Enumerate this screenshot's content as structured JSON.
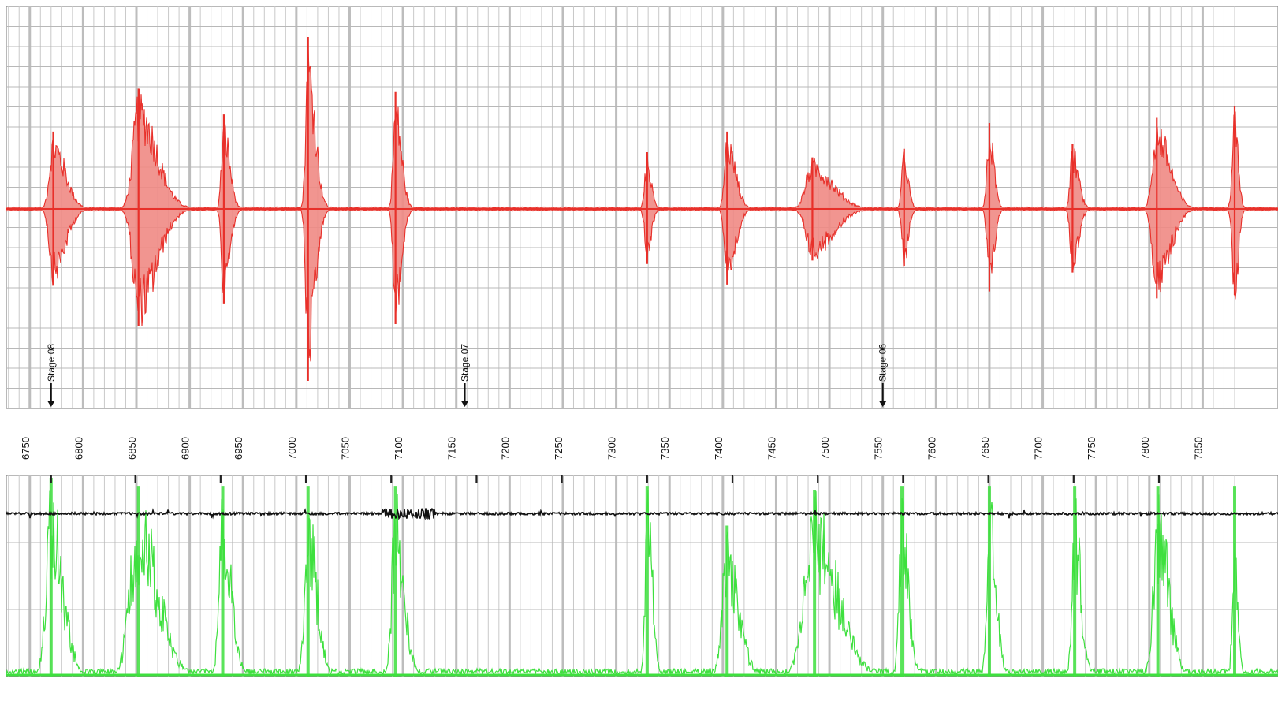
{
  "chart_data": [
    {
      "type": "line",
      "panel": "top",
      "title": "",
      "xlabel": "",
      "ylabel": "",
      "xlim": [
        6728,
        7880
      ],
      "grid": true,
      "x_ticks": [
        6750,
        6800,
        6850,
        6900,
        6950,
        7000,
        7050,
        7100,
        7150,
        7200,
        7250,
        7300,
        7350,
        7400,
        7450,
        7500,
        7550,
        7600,
        7650,
        7700,
        7750,
        7800,
        7850
      ],
      "series": [
        {
          "color": "#e8302a",
          "fill": "#f08a84",
          "style": "waveform",
          "baseline": 0,
          "amplitude_range": [
            -1,
            1
          ],
          "bursts": [
            {
              "x": 6772,
              "peak": 0.45,
              "trough": -0.44,
              "width": 20
            },
            {
              "x": 6852,
              "peak": 0.7,
              "trough": -0.68,
              "width": 30
            },
            {
              "x": 6932,
              "peak": 0.55,
              "trough": -0.55,
              "width": 10
            },
            {
              "x": 7011,
              "peak": 1.0,
              "trough": -1.0,
              "width": 12
            },
            {
              "x": 7093,
              "peak": 0.68,
              "trough": -0.67,
              "width": 10
            },
            {
              "x": 7329,
              "peak": 0.33,
              "trough": -0.32,
              "width": 7
            },
            {
              "x": 7404,
              "peak": 0.45,
              "trough": -0.44,
              "width": 14
            },
            {
              "x": 7484,
              "peak": 0.3,
              "trough": -0.3,
              "width": 34
            },
            {
              "x": 7570,
              "peak": 0.35,
              "trough": -0.33,
              "width": 7
            },
            {
              "x": 7650,
              "peak": 0.5,
              "trough": -0.48,
              "width": 8
            },
            {
              "x": 7728,
              "peak": 0.38,
              "trough": -0.37,
              "width": 10
            },
            {
              "x": 7807,
              "peak": 0.53,
              "trough": -0.52,
              "width": 22
            },
            {
              "x": 7880,
              "peak": 0.6,
              "trough": -0.5,
              "width": 6
            }
          ]
        }
      ],
      "annotations": [
        {
          "label": "Stage 08",
          "x": 6770
        },
        {
          "label": "Stage 07",
          "x": 7158
        },
        {
          "label": "Stage 06",
          "x": 7550
        }
      ]
    },
    {
      "type": "line",
      "panel": "bottom",
      "title": "",
      "xlabel": "",
      "ylabel": "",
      "xlim": [
        6728,
        7880
      ],
      "grid": true,
      "tick_marks_x": [
        6770,
        6849,
        6929,
        7009,
        7089,
        7169,
        7249,
        7329,
        7409,
        7489,
        7569,
        7649,
        7729,
        7809
      ],
      "series": [
        {
          "color": "#111111",
          "style": "noise-trace",
          "level": 0.82,
          "noisy_segment": [
            7080,
            7130
          ]
        },
        {
          "color": "#3ee03e",
          "style": "spikes",
          "level": 0,
          "peaks": [
            {
              "x": 6770,
              "value": 1.0,
              "width": 22
            },
            {
              "x": 6852,
              "value": 0.96,
              "width": 36
            },
            {
              "x": 6931,
              "value": 0.96,
              "width": 16
            },
            {
              "x": 7011,
              "value": 0.96,
              "width": 16
            },
            {
              "x": 7093,
              "value": 0.96,
              "width": 16
            },
            {
              "x": 7329,
              "value": 0.96,
              "width": 10
            },
            {
              "x": 7404,
              "value": 0.76,
              "width": 22
            },
            {
              "x": 7486,
              "value": 0.94,
              "width": 42
            },
            {
              "x": 7568,
              "value": 0.96,
              "width": 12
            },
            {
              "x": 7650,
              "value": 0.96,
              "width": 12
            },
            {
              "x": 7730,
              "value": 0.96,
              "width": 12
            },
            {
              "x": 7808,
              "value": 0.96,
              "width": 20
            },
            {
              "x": 7880,
              "value": 0.96,
              "width": 6
            }
          ]
        }
      ]
    }
  ]
}
